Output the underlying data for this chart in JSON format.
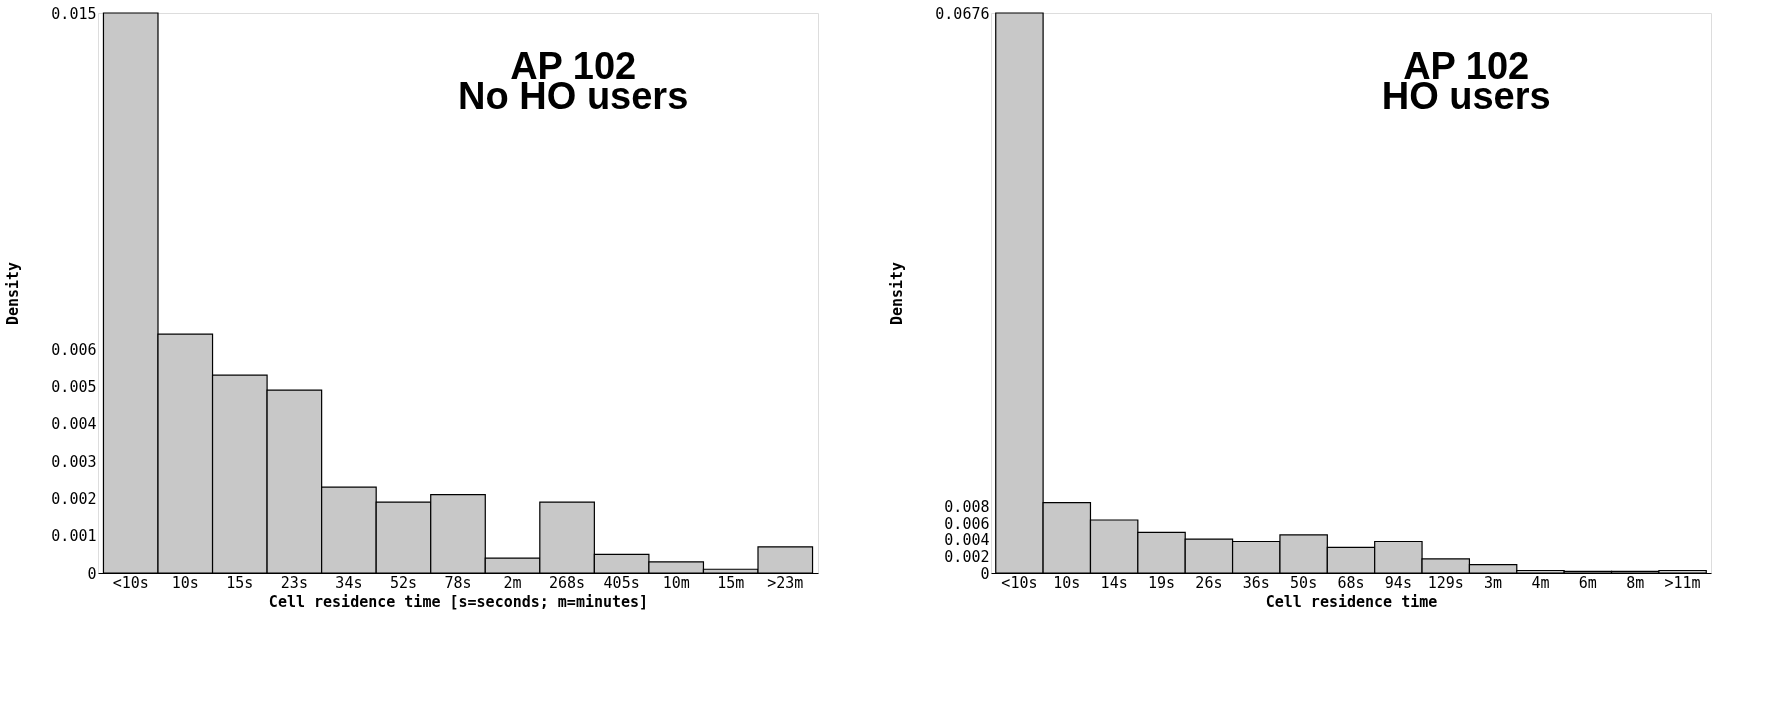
{
  "chart_data": [
    {
      "type": "bar",
      "categories": [
        "<10s",
        "10s",
        "15s",
        "23s",
        "34s",
        "52s",
        "78s",
        "2m",
        "268s",
        "405s",
        "10m",
        "15m",
        ">23m"
      ],
      "values": [
        0.015,
        0.0064,
        0.0053,
        0.0049,
        0.0023,
        0.0019,
        0.0021,
        0.0004,
        0.0019,
        0.0005,
        0.0003,
        0.0001,
        0.0007
      ],
      "color": "#c8c8c8",
      "xlabel": "Cell residence time [s=seconds; m=minutes]",
      "ylabel": "Density",
      "ylim": [
        0,
        0.015
      ],
      "yticks": [
        0,
        0.001,
        0.002,
        0.003,
        0.004,
        0.005,
        0.006,
        0.015
      ],
      "grid": false,
      "annotations": [
        "AP 102",
        "No HO users"
      ]
    },
    {
      "type": "bar",
      "categories": [
        "<10s",
        "10s",
        "14s",
        "19s",
        "26s",
        "36s",
        "50s",
        "68s",
        "94s",
        "129s",
        "3m",
        "4m",
        "6m",
        "8m",
        ">11m"
      ],
      "values": [
        0.0676,
        0.0085,
        0.0064,
        0.0049,
        0.0041,
        0.0038,
        0.0046,
        0.0031,
        0.0038,
        0.0017,
        0.001,
        0.0003,
        0.0002,
        0.0002,
        0.0003
      ],
      "color": "#c8c8c8",
      "xlabel": "Cell residence time",
      "ylabel": "Density",
      "ylim": [
        0,
        0.0676
      ],
      "yticks": [
        0,
        0.002,
        0.004,
        0.006,
        0.008,
        0.0676
      ],
      "grid": false,
      "annotations": [
        "AP 102",
        "HO users"
      ]
    }
  ]
}
